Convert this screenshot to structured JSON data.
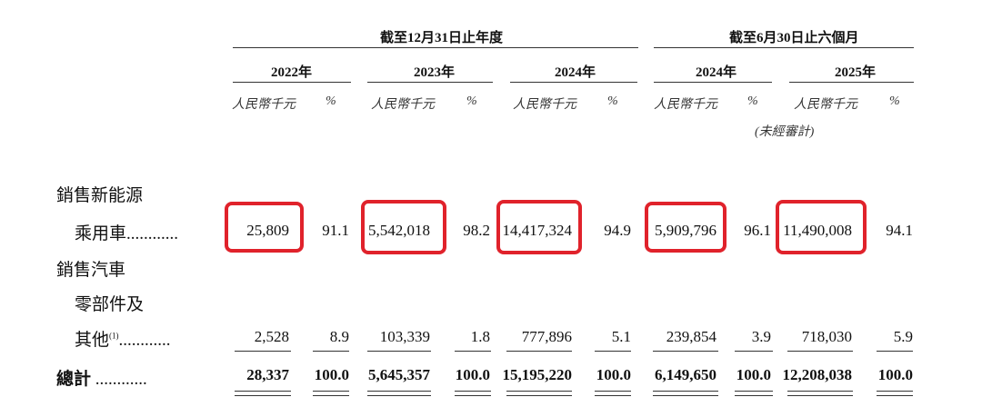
{
  "header": {
    "group_year": "截至12月31日止年度",
    "group_half": "截至6月30日止六個月",
    "years": [
      "2022年",
      "2023年",
      "2024年",
      "2024年",
      "2025年"
    ],
    "unit": "人民幣千元",
    "pct": "%",
    "unaudited": "(未經審計)"
  },
  "rows": [
    {
      "label_lines": [
        "銷售新能源",
        "乘用車............"
      ],
      "values": [
        "25,809",
        "5,542,018",
        "14,417,324",
        "5,909,796",
        "11,490,008"
      ],
      "pcts": [
        "91.1",
        "98.2",
        "94.9",
        "96.1",
        "94.1"
      ]
    },
    {
      "label_lines": [
        "銷售汽車",
        "零部件及",
        "其他",
        "............"
      ],
      "note": "(1)",
      "values": [
        "2,528",
        "103,339",
        "777,896",
        "239,854",
        "718,030"
      ],
      "pcts": [
        "8.9",
        "1.8",
        "5.1",
        "3.9",
        "5.9"
      ]
    },
    {
      "label_lines": [
        "總計",
        "............"
      ],
      "values": [
        "28,337",
        "5,645,357",
        "15,195,220",
        "6,149,650",
        "12,208,038"
      ],
      "pcts": [
        "100.0",
        "100.0",
        "100.0",
        "100.0",
        "100.0"
      ]
    }
  ],
  "highlight_color": "#e0222b"
}
